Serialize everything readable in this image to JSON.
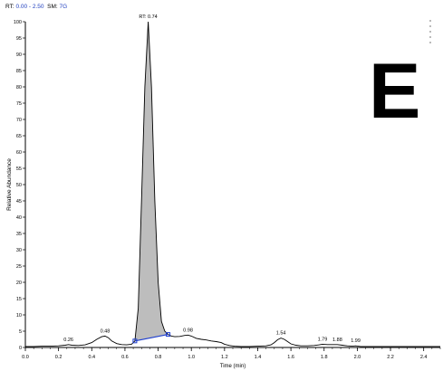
{
  "header": {
    "rt_label": "RT:",
    "rt_range": "0.00 - 2.50",
    "sm_label": "SM:",
    "sm_value": "7G"
  },
  "panel_letter": "E",
  "chart_data": {
    "type": "line",
    "title": "",
    "xlabel": "Time (min)",
    "ylabel": "Relative Abundance",
    "xlim": [
      0.0,
      2.5
    ],
    "ylim": [
      0,
      100
    ],
    "x_ticks": [
      0.0,
      0.2,
      0.4,
      0.6,
      0.8,
      1.0,
      1.2,
      1.4,
      1.6,
      1.8,
      2.0,
      2.2,
      2.4
    ],
    "x_tick_labels": [
      "0.0",
      "0.2",
      "0.4",
      "0.6",
      "0.8",
      "1.0",
      "1.2",
      "1.4",
      "1.6",
      "1.8",
      "2.0",
      "2.2",
      "2.4"
    ],
    "y_ticks": [
      0,
      5,
      10,
      15,
      20,
      25,
      30,
      35,
      40,
      45,
      50,
      55,
      60,
      65,
      70,
      75,
      80,
      85,
      90,
      95,
      100
    ],
    "series": [
      {
        "x": [
          0.0,
          0.05,
          0.1,
          0.15,
          0.2,
          0.24,
          0.26,
          0.28,
          0.32,
          0.36,
          0.4,
          0.43,
          0.46,
          0.48,
          0.5,
          0.52,
          0.55,
          0.58,
          0.61,
          0.64,
          0.66,
          0.68,
          0.7,
          0.72,
          0.74,
          0.76,
          0.78,
          0.8,
          0.82,
          0.84,
          0.86,
          0.88,
          0.9,
          0.93,
          0.96,
          0.98,
          1.0,
          1.03,
          1.06,
          1.09,
          1.12,
          1.15,
          1.18,
          1.2,
          1.23,
          1.26,
          1.3,
          1.35,
          1.4,
          1.45,
          1.48,
          1.5,
          1.52,
          1.54,
          1.56,
          1.58,
          1.6,
          1.63,
          1.66,
          1.7,
          1.74,
          1.77,
          1.79,
          1.82,
          1.85,
          1.88,
          1.91,
          1.94,
          1.97,
          1.99,
          2.02,
          2.1,
          2.2,
          2.3,
          2.4,
          2.5
        ],
        "y": [
          0.3,
          0.3,
          0.4,
          0.4,
          0.5,
          0.7,
          0.9,
          0.7,
          0.6,
          0.8,
          1.5,
          2.5,
          3.3,
          3.5,
          3.0,
          2.0,
          1.2,
          0.9,
          0.8,
          1.0,
          2.0,
          12.0,
          45.0,
          80.0,
          100.0,
          80.0,
          45.0,
          20.0,
          8.0,
          5.0,
          4.0,
          3.5,
          3.3,
          3.4,
          3.7,
          3.8,
          3.5,
          2.8,
          2.5,
          2.3,
          2.0,
          1.8,
          1.5,
          1.0,
          0.6,
          0.4,
          0.3,
          0.3,
          0.4,
          0.5,
          0.8,
          1.5,
          2.4,
          2.9,
          2.5,
          1.8,
          1.1,
          0.7,
          0.5,
          0.5,
          0.6,
          0.8,
          1.0,
          0.9,
          0.9,
          0.9,
          0.7,
          0.5,
          0.4,
          0.5,
          0.3,
          0.3,
          0.3,
          0.3,
          0.3,
          0.3
        ]
      }
    ],
    "peak_labels": [
      {
        "text": "RT: 0.74",
        "x": 0.74,
        "y": 100
      },
      {
        "text": "0.26",
        "x": 0.26,
        "y": 0.9
      },
      {
        "text": "0.48",
        "x": 0.48,
        "y": 3.5
      },
      {
        "text": "0.98",
        "x": 0.98,
        "y": 3.8
      },
      {
        "text": "1.54",
        "x": 1.54,
        "y": 2.9
      },
      {
        "text": "1.79",
        "x": 1.79,
        "y": 1.0
      },
      {
        "text": "1.88",
        "x": 1.88,
        "y": 0.9
      },
      {
        "text": "1.99",
        "x": 1.99,
        "y": 0.5
      }
    ],
    "integrated_peak": {
      "x_start": 0.66,
      "x_end": 0.86,
      "fill_color": "#bdbdbd",
      "baseline_color": "#1f3fcf"
    },
    "line_color": "#000000"
  }
}
